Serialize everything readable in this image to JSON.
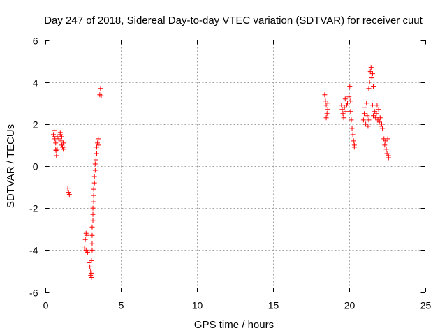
{
  "chart_data": {
    "type": "scatter",
    "title": "Day 247 of 2018, Sidereal Day-to-day VTEC variation (SDTVAR) for receiver cuut",
    "xlabel": "GPS time / hours",
    "ylabel": "SDTVAR / TECUs",
    "xlim": [
      0,
      25
    ],
    "ylim": [
      -6,
      6
    ],
    "xticks": [
      0,
      5,
      10,
      15,
      20,
      25
    ],
    "yticks": [
      -6,
      -4,
      -2,
      0,
      2,
      4,
      6
    ],
    "grid": true,
    "marker": "plus",
    "color": "#ff0000",
    "series": [
      {
        "name": "SDTVAR",
        "points": [
          [
            0.55,
            1.5
          ],
          [
            0.6,
            1.7
          ],
          [
            0.6,
            1.4
          ],
          [
            0.65,
            1.3
          ],
          [
            0.7,
            1.1
          ],
          [
            0.7,
            0.8
          ],
          [
            0.72,
            0.75
          ],
          [
            0.75,
            0.5
          ],
          [
            0.8,
            1.4
          ],
          [
            0.8,
            0.8
          ],
          [
            0.9,
            1.3
          ],
          [
            1.0,
            1.5
          ],
          [
            1.0,
            1.6
          ],
          [
            1.05,
            1.2
          ],
          [
            1.1,
            1.0
          ],
          [
            1.1,
            1.4
          ],
          [
            1.15,
            0.9
          ],
          [
            1.2,
            1.1
          ],
          [
            1.2,
            0.8
          ],
          [
            1.25,
            0.9
          ],
          [
            1.5,
            -1.05
          ],
          [
            1.55,
            -1.25
          ],
          [
            1.6,
            -1.35
          ],
          [
            2.6,
            -3.9
          ],
          [
            2.65,
            -3.5
          ],
          [
            2.7,
            -3.2
          ],
          [
            2.7,
            -4.0
          ],
          [
            2.75,
            -3.3
          ],
          [
            2.8,
            -4.1
          ],
          [
            2.9,
            -4.6
          ],
          [
            2.95,
            -4.8
          ],
          [
            3.0,
            -5.0
          ],
          [
            3.0,
            -5.2
          ],
          [
            3.05,
            -5.1
          ],
          [
            3.05,
            -4.5
          ],
          [
            3.05,
            -5.3
          ],
          [
            3.1,
            -4.0
          ],
          [
            3.1,
            -3.7
          ],
          [
            3.1,
            -3.3
          ],
          [
            3.1,
            -2.9
          ],
          [
            3.15,
            -2.6
          ],
          [
            3.15,
            -2.3
          ],
          [
            3.15,
            -2.0
          ],
          [
            3.2,
            -1.7
          ],
          [
            3.2,
            -1.4
          ],
          [
            3.2,
            -1.1
          ],
          [
            3.25,
            -0.8
          ],
          [
            3.25,
            -0.5
          ],
          [
            3.3,
            -0.2
          ],
          [
            3.3,
            0.1
          ],
          [
            3.35,
            0.3
          ],
          [
            3.4,
            0.6
          ],
          [
            3.4,
            0.9
          ],
          [
            3.45,
            1.1
          ],
          [
            3.5,
            1.3
          ],
          [
            3.5,
            1.0
          ],
          [
            3.6,
            3.4
          ],
          [
            3.65,
            3.7
          ],
          [
            3.7,
            3.35
          ],
          [
            18.4,
            3.4
          ],
          [
            18.45,
            3.1
          ],
          [
            18.5,
            2.9
          ],
          [
            18.5,
            2.3
          ],
          [
            18.55,
            2.5
          ],
          [
            18.6,
            3.0
          ],
          [
            18.6,
            2.7
          ],
          [
            19.5,
            2.9
          ],
          [
            19.55,
            2.7
          ],
          [
            19.6,
            2.5
          ],
          [
            19.65,
            2.3
          ],
          [
            19.7,
            2.8
          ],
          [
            19.75,
            3.2
          ],
          [
            19.8,
            2.6
          ],
          [
            19.85,
            2.9
          ],
          [
            19.9,
            3.0
          ],
          [
            20.0,
            3.3
          ],
          [
            20.05,
            3.8
          ],
          [
            20.1,
            3.1
          ],
          [
            20.1,
            2.6
          ],
          [
            20.15,
            2.2
          ],
          [
            20.2,
            1.8
          ],
          [
            20.25,
            1.5
          ],
          [
            20.3,
            1.2
          ],
          [
            20.35,
            0.9
          ],
          [
            20.35,
            1.0
          ],
          [
            20.95,
            2.2
          ],
          [
            21.0,
            2.5
          ],
          [
            21.05,
            2.8
          ],
          [
            21.1,
            2.0
          ],
          [
            21.15,
            3.0
          ],
          [
            21.2,
            2.4
          ],
          [
            21.25,
            1.9
          ],
          [
            21.3,
            2.2
          ],
          [
            21.3,
            3.7
          ],
          [
            21.35,
            4.0
          ],
          [
            21.4,
            4.5
          ],
          [
            21.45,
            4.7
          ],
          [
            21.5,
            4.2
          ],
          [
            21.55,
            4.4
          ],
          [
            21.6,
            3.8
          ],
          [
            21.55,
            2.9
          ],
          [
            21.6,
            2.4
          ],
          [
            21.7,
            2.6
          ],
          [
            21.75,
            2.3
          ],
          [
            21.8,
            2.5
          ],
          [
            21.85,
            2.9
          ],
          [
            21.9,
            2.2
          ],
          [
            21.95,
            2.7
          ],
          [
            22.0,
            2.1
          ],
          [
            22.05,
            2.3
          ],
          [
            22.1,
            1.9
          ],
          [
            22.15,
            2.0
          ],
          [
            22.2,
            1.8
          ],
          [
            22.3,
            1.3
          ],
          [
            22.35,
            1.0
          ],
          [
            22.4,
            1.2
          ],
          [
            22.45,
            0.8
          ],
          [
            22.5,
            0.6
          ],
          [
            22.55,
            1.3
          ],
          [
            22.6,
            0.5
          ],
          [
            22.6,
            0.4
          ]
        ]
      }
    ]
  }
}
